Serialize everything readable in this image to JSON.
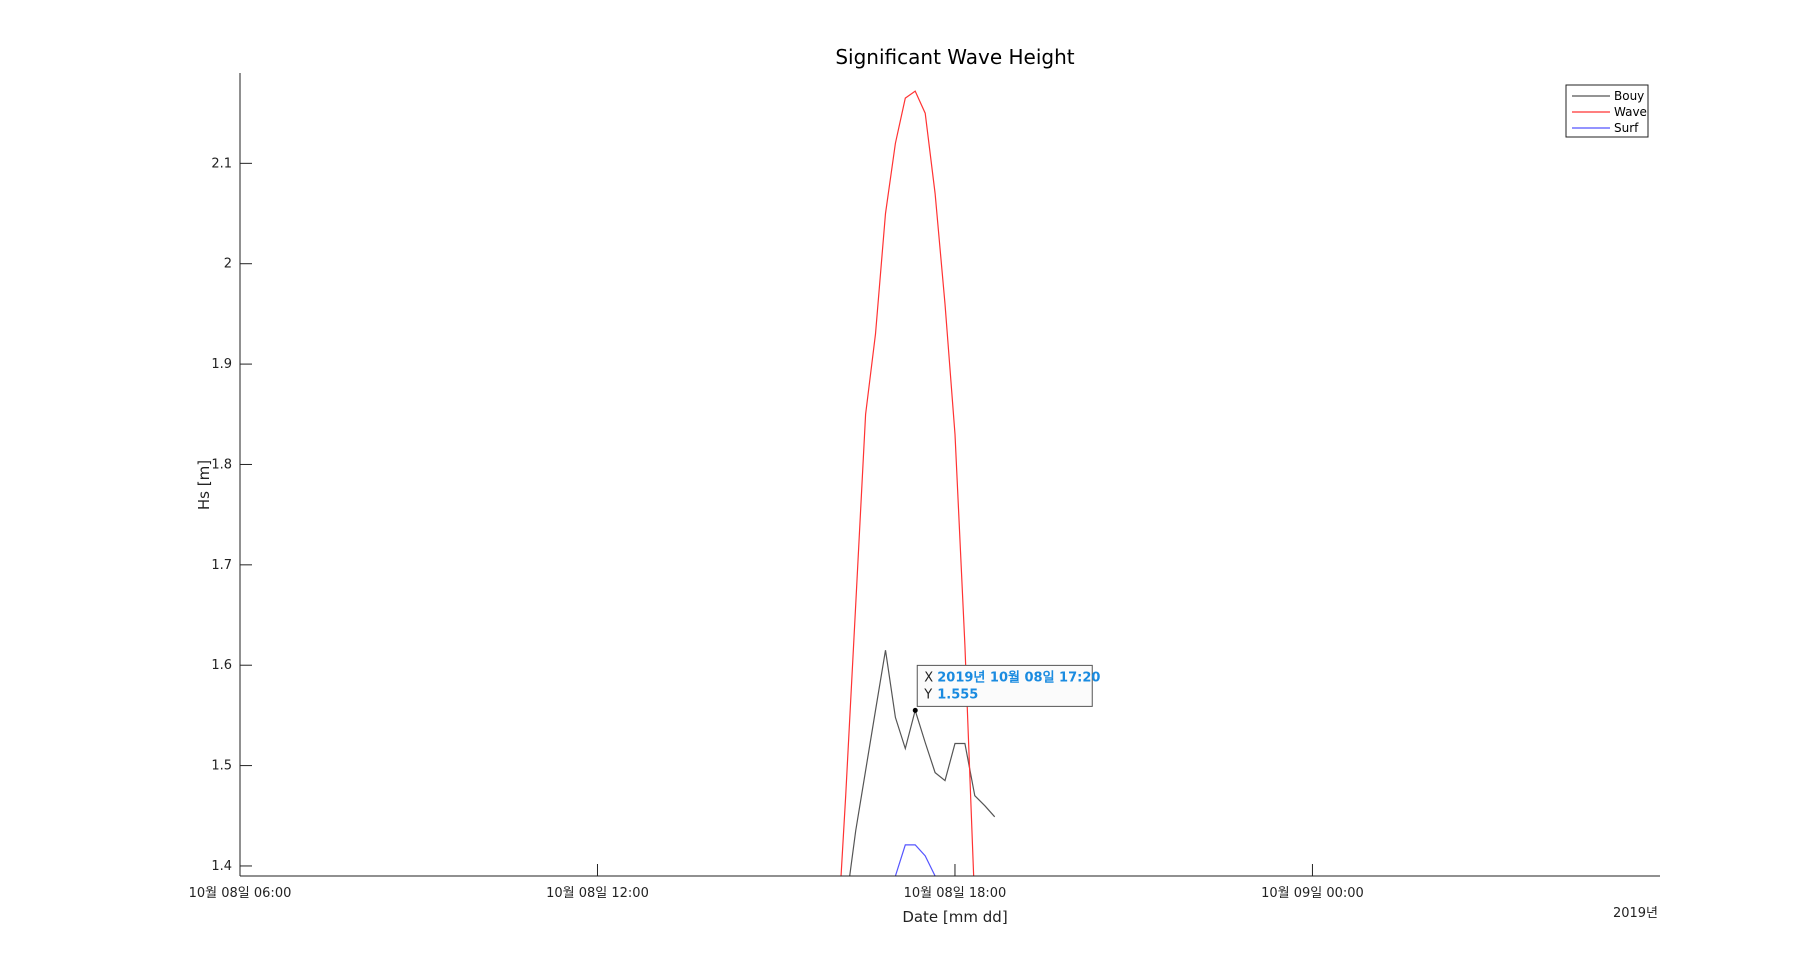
{
  "chart_data": {
    "type": "line",
    "title": "Significant Wave Height",
    "xlabel": "Date [mm dd]",
    "ylabel": "Hs [m]",
    "x_axis_secondary_label": "2019년",
    "x_ticks": [
      {
        "label": "10월 08일 06:00",
        "t": 0
      },
      {
        "label": "10월 08일 12:00",
        "t": 360
      },
      {
        "label": "10월 08일 18:00",
        "t": 720
      },
      {
        "label": "10월 09일 00:00",
        "t": 1080
      }
    ],
    "xlim": [
      0,
      1430
    ],
    "y_ticks": [
      1.4,
      1.5,
      1.6,
      1.7,
      1.8,
      1.9,
      2,
      2.1
    ],
    "ylim": [
      1.39,
      2.19
    ],
    "legend": {
      "location": "top-right"
    },
    "series": [
      {
        "name": "Bouy",
        "color": "#555555",
        "x": [
          610,
          620,
          630,
          640,
          650,
          660,
          670,
          680,
          690,
          700,
          710,
          720,
          730,
          740,
          750,
          760
        ],
        "y": [
          1.36,
          1.435,
          1.495,
          1.555,
          1.615,
          1.548,
          1.517,
          1.555,
          1.523,
          1.493,
          1.485,
          1.522,
          1.522,
          1.47,
          1.46,
          1.449
        ]
      },
      {
        "name": "Wave",
        "color": "#ff3333",
        "x": [
          600,
          610,
          620,
          630,
          640,
          650,
          660,
          670,
          680,
          690,
          700,
          710,
          720,
          730,
          740
        ],
        "y": [
          1.3,
          1.47,
          1.66,
          1.85,
          1.93,
          2.05,
          2.12,
          2.165,
          2.172,
          2.15,
          2.07,
          1.96,
          1.83,
          1.62,
          1.36
        ]
      },
      {
        "name": "Surf",
        "color": "#5555ff",
        "x": [
          660,
          670,
          680,
          690,
          700
        ],
        "y": [
          1.39,
          1.421,
          1.421,
          1.41,
          1.39
        ]
      }
    ],
    "datatip": {
      "x_label": "X",
      "x_value": "2019년 10월 08일 17:20",
      "y_label": "Y",
      "y_value": "1.555",
      "x": 680,
      "y": 1.555
    }
  }
}
